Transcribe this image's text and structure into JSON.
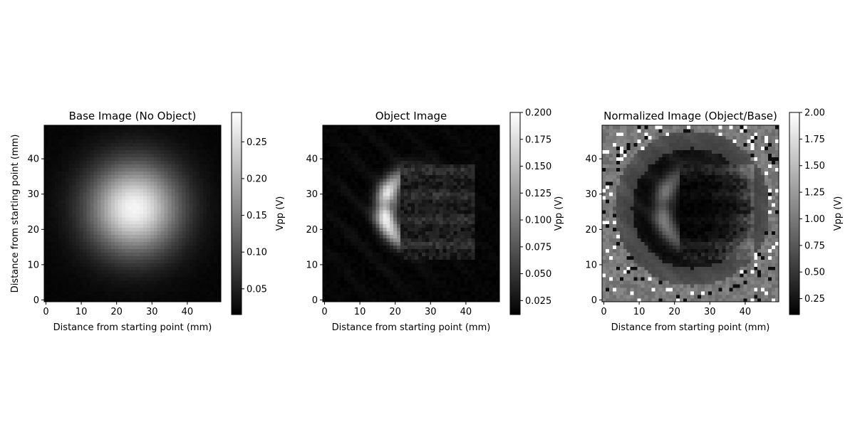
{
  "chart_data": [
    {
      "type": "heatmap",
      "title": "Base Image (No Object)",
      "xlabel": "Distance from starting point (mm)",
      "ylabel": "Distance from starting point (mm)",
      "xlim": [
        -0.5,
        49.5
      ],
      "ylim": [
        -0.5,
        49.5
      ],
      "xticks": [
        0,
        10,
        20,
        30,
        40
      ],
      "yticks": [
        0,
        10,
        20,
        30,
        40
      ],
      "grid": false,
      "colormap": "gray",
      "colorbar": {
        "label": "Vpp (V)",
        "vmin": 0.015,
        "vmax": 0.29,
        "ticks": [
          0.05,
          0.1,
          0.15,
          0.2,
          0.25
        ],
        "tick_labels": [
          "0.05",
          "0.10",
          "0.15",
          "0.20",
          "0.25"
        ]
      },
      "data_model": {
        "kind": "gaussian_spot",
        "peak_vpp": 0.28,
        "floor_vpp": 0.02,
        "center_mm": [
          25,
          26
        ],
        "sigma_mm": 9
      }
    },
    {
      "type": "heatmap",
      "title": "Object Image",
      "xlabel": "Distance from starting point (mm)",
      "ylabel": "",
      "xlim": [
        -0.5,
        49.5
      ],
      "ylim": [
        -0.5,
        49.5
      ],
      "xticks": [
        0,
        10,
        20,
        30,
        40
      ],
      "yticks": [
        0,
        10,
        20,
        30,
        40
      ],
      "grid": false,
      "colormap": "gray",
      "colorbar": {
        "label": "Vpp (V)",
        "vmin": 0.012,
        "vmax": 0.2,
        "ticks": [
          0.025,
          0.05,
          0.075,
          0.1,
          0.125,
          0.15,
          0.175,
          0.2
        ],
        "tick_labels": [
          "0.025",
          "0.050",
          "0.075",
          "0.100",
          "0.125",
          "0.150",
          "0.175",
          "0.200"
        ]
      },
      "data_model": {
        "kind": "shadowed_crescent",
        "peak_vpp": 0.19,
        "arc_center_mm": [
          28,
          26
        ],
        "arc_radius_mm": 11,
        "object_square_mm": {
          "x_from": 22,
          "x_to": 42,
          "y_from": 12,
          "y_to": 38
        }
      }
    },
    {
      "type": "heatmap",
      "title": "Normalized Image (Object/Base)",
      "xlabel": "Distance from starting point (mm)",
      "ylabel": "",
      "xlim": [
        -0.5,
        49.5
      ],
      "ylim": [
        -0.5,
        49.5
      ],
      "xticks": [
        0,
        10,
        20,
        30,
        40
      ],
      "yticks": [
        0,
        10,
        20,
        30,
        40
      ],
      "grid": false,
      "colormap": "gray",
      "colorbar": {
        "label": "Vpp (V)",
        "vmin": 0.1,
        "vmax": 2.0,
        "ticks": [
          0.25,
          0.5,
          0.75,
          1.0,
          1.25,
          1.5,
          1.75,
          2.0
        ],
        "tick_labels": [
          "0.25",
          "0.50",
          "0.75",
          "1.00",
          "1.25",
          "1.50",
          "1.75",
          "2.00"
        ]
      },
      "data_model": {
        "kind": "ratio",
        "background_ratio": 1.0,
        "object_ratio": 0.3,
        "noisy_corners": true
      }
    }
  ]
}
